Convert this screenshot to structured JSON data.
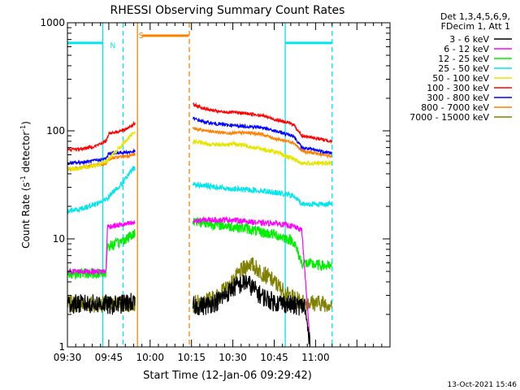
{
  "chart_data": {
    "type": "line",
    "title": "RHESSI Observing Summary Count Rates",
    "xlabel": "Start Time (12-Jan-06 09:29:42)",
    "ylabel_main": "Count Rate (s",
    "ylabel_sup1": "-1",
    "ylabel_mid": " detector",
    "ylabel_sup2": "-1",
    "ylabel_end": ")",
    "y_scale": "log",
    "ylim": [
      1,
      1000
    ],
    "xlim_min": [
      0,
      117
    ],
    "x_tick_labels": [
      "09:30",
      "09:45",
      "10:00",
      "10:15",
      "10:30",
      "10:45",
      "11:00"
    ],
    "x_tick_minutes": [
      0,
      15,
      30,
      45,
      60,
      75,
      90
    ],
    "y_tick_labels": [
      "1",
      "10",
      "100",
      "1000"
    ],
    "y_tick_values": [
      1,
      10,
      100,
      1000
    ],
    "legend_header": [
      "Det 1,3,4,5,6,9,",
      "FDecim 1, Att 1"
    ],
    "timestamp": "13-Oct-2021 15:46",
    "flag_labels": {
      "saa": "S",
      "night": "N"
    },
    "gap": [
      25,
      45
    ],
    "series": [
      {
        "name": "3 - 6 keV",
        "color": "#000000",
        "points": [
          [
            0,
            2.5
          ],
          [
            14,
            2.5
          ],
          [
            15,
            2.4
          ],
          [
            20,
            2.5
          ],
          [
            23,
            2.6
          ],
          [
            24,
            2.5
          ],
          [
            45.5,
            2.4
          ],
          [
            50,
            2.4
          ],
          [
            55,
            2.7
          ],
          [
            60,
            3.5
          ],
          [
            65,
            4
          ],
          [
            70,
            3
          ],
          [
            75,
            2.6
          ],
          [
            80,
            2.5
          ],
          [
            82,
            2.4
          ],
          [
            86,
            2.4
          ],
          [
            88,
            1
          ]
        ]
      },
      {
        "name": "6 - 12 keV",
        "color": "#ff00ff",
        "points": [
          [
            0,
            5
          ],
          [
            14,
            5
          ],
          [
            14.5,
            13
          ],
          [
            20,
            13.5
          ],
          [
            24,
            14
          ],
          [
            45.5,
            14.5
          ],
          [
            50,
            15
          ],
          [
            55,
            15
          ],
          [
            60,
            15
          ],
          [
            65,
            14.5
          ],
          [
            70,
            14
          ],
          [
            75,
            14
          ],
          [
            79,
            13.5
          ],
          [
            82,
            13
          ],
          [
            85,
            12
          ],
          [
            88,
            1.1
          ]
        ]
      },
      {
        "name": "12 - 25 keV",
        "color": "#00ee00",
        "points": [
          [
            0,
            4.8
          ],
          [
            14,
            4.8
          ],
          [
            14.5,
            8.5
          ],
          [
            18,
            9
          ],
          [
            21,
            10
          ],
          [
            24,
            11
          ],
          [
            45.5,
            15
          ],
          [
            50,
            14
          ],
          [
            55,
            13.5
          ],
          [
            60,
            13
          ],
          [
            65,
            12.5
          ],
          [
            70,
            11.5
          ],
          [
            75,
            11
          ],
          [
            80,
            10
          ],
          [
            82,
            9.5
          ],
          [
            85,
            6
          ],
          [
            96,
            5.5
          ]
        ]
      },
      {
        "name": "25 - 50 keV",
        "color": "#00e5ee",
        "points": [
          [
            0,
            18
          ],
          [
            5,
            19
          ],
          [
            10,
            21
          ],
          [
            14,
            23
          ],
          [
            17,
            28
          ],
          [
            20,
            33
          ],
          [
            24,
            45
          ],
          [
            45.5,
            32
          ],
          [
            50,
            31
          ],
          [
            55,
            30
          ],
          [
            60,
            29
          ],
          [
            65,
            28.5
          ],
          [
            70,
            28
          ],
          [
            75,
            27
          ],
          [
            82,
            25
          ],
          [
            85,
            21
          ],
          [
            96,
            21
          ]
        ]
      },
      {
        "name": "50 - 100 keV",
        "color": "#e5e500",
        "points": [
          [
            0,
            44
          ],
          [
            5,
            45
          ],
          [
            10,
            48
          ],
          [
            14,
            52
          ],
          [
            17,
            62
          ],
          [
            20,
            75
          ],
          [
            24,
            95
          ],
          [
            45.5,
            80
          ],
          [
            50,
            76
          ],
          [
            55,
            74
          ],
          [
            60,
            76
          ],
          [
            65,
            73
          ],
          [
            70,
            68
          ],
          [
            75,
            64
          ],
          [
            82,
            55
          ],
          [
            85,
            50
          ],
          [
            96,
            50
          ]
        ]
      },
      {
        "name": "100 - 300 keV",
        "color": "#ff0000",
        "points": [
          [
            0,
            67
          ],
          [
            5,
            68
          ],
          [
            10,
            72
          ],
          [
            14,
            80
          ],
          [
            15,
            95
          ],
          [
            20,
            100
          ],
          [
            24,
            115
          ],
          [
            45.5,
            175
          ],
          [
            50,
            160
          ],
          [
            55,
            150
          ],
          [
            60,
            148
          ],
          [
            65,
            145
          ],
          [
            70,
            140
          ],
          [
            75,
            128
          ],
          [
            82,
            115
          ],
          [
            85,
            90
          ],
          [
            96,
            80
          ]
        ]
      },
      {
        "name": "300 - 800 keV",
        "color": "#0000ff",
        "points": [
          [
            0,
            50
          ],
          [
            5,
            51
          ],
          [
            10,
            53
          ],
          [
            14,
            55
          ],
          [
            15,
            62
          ],
          [
            20,
            63
          ],
          [
            24,
            64
          ],
          [
            45.5,
            130
          ],
          [
            50,
            120
          ],
          [
            55,
            115
          ],
          [
            60,
            112
          ],
          [
            65,
            110
          ],
          [
            70,
            108
          ],
          [
            75,
            100
          ],
          [
            82,
            90
          ],
          [
            85,
            70
          ],
          [
            96,
            62
          ]
        ]
      },
      {
        "name": "800 - 7000 keV",
        "color": "#ff8000",
        "points": [
          [
            0,
            44
          ],
          [
            5,
            46
          ],
          [
            10,
            48
          ],
          [
            14,
            50
          ],
          [
            15,
            55
          ],
          [
            20,
            58
          ],
          [
            24,
            60
          ],
          [
            45.5,
            105
          ],
          [
            50,
            100
          ],
          [
            55,
            97
          ],
          [
            60,
            95
          ],
          [
            65,
            96
          ],
          [
            70,
            94
          ],
          [
            75,
            85
          ],
          [
            82,
            78
          ],
          [
            85,
            65
          ],
          [
            96,
            58
          ]
        ]
      },
      {
        "name": "7000 - 15000 keV",
        "color": "#808000",
        "points": [
          [
            0,
            2.5
          ],
          [
            15,
            2.5
          ],
          [
            20,
            2.5
          ],
          [
            24,
            2.5
          ],
          [
            45.5,
            2.5
          ],
          [
            50,
            2.6
          ],
          [
            55,
            3
          ],
          [
            60,
            4
          ],
          [
            63,
            5
          ],
          [
            66,
            6
          ],
          [
            70,
            5
          ],
          [
            75,
            4
          ],
          [
            80,
            3
          ],
          [
            85,
            2.6
          ],
          [
            96,
            2.5
          ]
        ]
      }
    ],
    "night_solid_top": [
      [
        0,
        12.8
      ],
      [
        79,
        96
      ]
    ],
    "flag_bars": [
      {
        "color": "#00e5ee",
        "level": 650,
        "x": [
          0,
          12.8
        ]
      },
      {
        "color": "#00e5ee",
        "level": 650,
        "x": [
          79,
          96
        ]
      },
      {
        "color": "#ff8000",
        "level": 760,
        "x": [
          27,
          44
        ]
      }
    ],
    "vlines": [
      {
        "x": 12.8,
        "color": "#00e5ee",
        "dash": false
      },
      {
        "x": 20.2,
        "color": "#00e5ee",
        "dash": true
      },
      {
        "x": 25.4,
        "color": "#ff8000",
        "dash": false
      },
      {
        "x": 44.2,
        "color": "#ff8000",
        "dash": true
      },
      {
        "x": 79,
        "color": "#00e5ee",
        "dash": false
      },
      {
        "x": 96,
        "color": "#00e5ee",
        "dash": true
      }
    ]
  }
}
